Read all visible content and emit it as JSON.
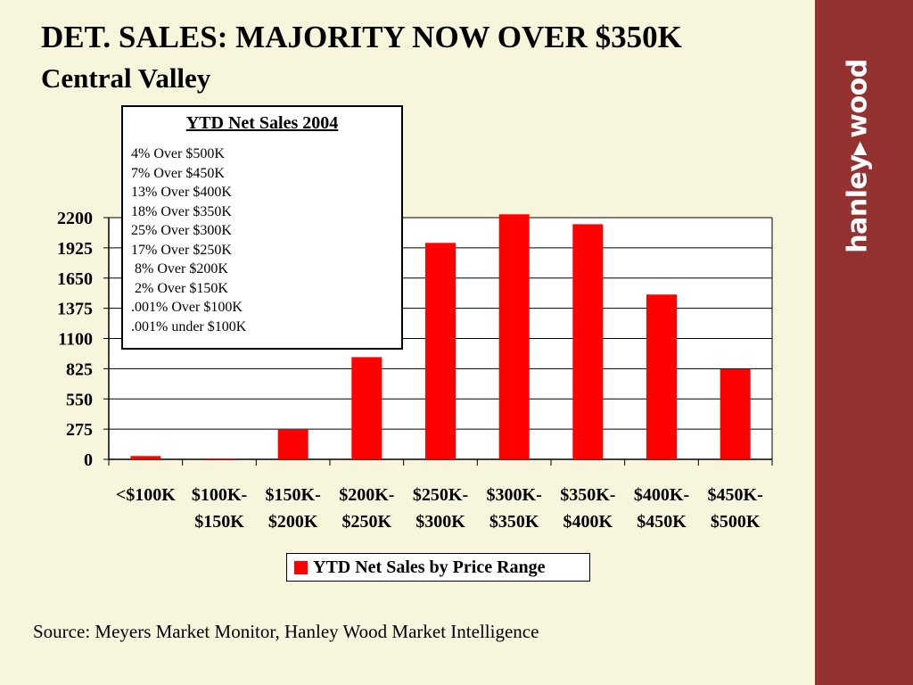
{
  "title": "DET. SALES: MAJORITY NOW OVER $350K",
  "subtitle": "Central Valley",
  "brand": {
    "left": "hanley",
    "right": "wood",
    "sidebar_color": "#943232"
  },
  "notes": {
    "title": "YTD Net Sales 2004",
    "lines": [
      "4% Over $500K",
      "7% Over $450K",
      "13% Over $400K",
      "18% Over $350K",
      "25% Over $300K",
      "17% Over $250K",
      " 8% Over $200K",
      " 2% Over $150K",
      ".001% Over $100K",
      ".001% under $100K"
    ]
  },
  "source": "Source:  Meyers Market Monitor, Hanley Wood Market Intelligence",
  "chart_data": {
    "type": "bar",
    "categories": [
      [
        "<$100K"
      ],
      [
        "$100K-",
        "$150K"
      ],
      [
        "$150K-",
        "$200K"
      ],
      [
        "$200K-",
        "$250K"
      ],
      [
        "$250K-",
        "$300K"
      ],
      [
        "$300K-",
        "$350K"
      ],
      [
        "$350K-",
        "$400K"
      ],
      [
        "$400K-",
        "$450K"
      ],
      [
        "$450K-",
        "$500K"
      ]
    ],
    "series": [
      {
        "name": "YTD Net Sales by Price Range",
        "color": "#ff0000",
        "values": [
          30,
          8,
          270,
          930,
          1970,
          2230,
          2140,
          1500,
          820
        ]
      }
    ],
    "ylim": [
      0,
      2200
    ],
    "yticks": [
      "0",
      "275",
      "550",
      "825",
      "1100",
      "1375",
      "1650",
      "1925",
      "2200"
    ],
    "grid": true,
    "legend_position": "bottom"
  }
}
